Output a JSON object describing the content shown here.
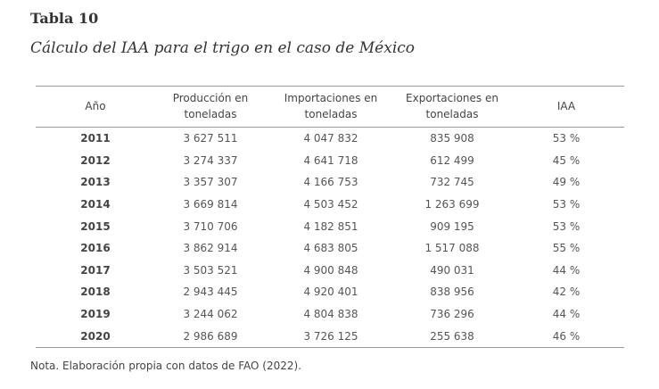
{
  "title": "Tabla 10",
  "subtitle": "Cálculo del IAA para el trigo en el caso de México",
  "table": {
    "headers": [
      "Año",
      "Producción en toneladas",
      "Importaciones en toneladas",
      "Exportaciones en toneladas",
      "IAA"
    ],
    "rows": [
      [
        "2011",
        "3 627 511",
        "4 047 832",
        "835 908",
        "53 %"
      ],
      [
        "2012",
        "3 274 337",
        "4 641 718",
        "612 499",
        "45 %"
      ],
      [
        "2013",
        "3 357 307",
        "4 166 753",
        "732 745",
        "49 %"
      ],
      [
        "2014",
        "3 669 814",
        "4 503 452",
        "1 263 699",
        "53 %"
      ],
      [
        "2015",
        "3 710 706",
        "4 182 851",
        "909 195",
        "53 %"
      ],
      [
        "2016",
        "3 862 914",
        "4 683 805",
        "1 517 088",
        "55 %"
      ],
      [
        "2017",
        "3 503 521",
        "4 900 848",
        "490 031",
        "44 %"
      ],
      [
        "2018",
        "2 943 445",
        "4 920 401",
        "838 956",
        "42 %"
      ],
      [
        "2019",
        "3 244 062",
        "4 804 838",
        "736 296",
        "44 %"
      ],
      [
        "2020",
        "2 986 689",
        "3 726 125",
        "255 638",
        "46 %"
      ]
    ]
  },
  "note": "Nota. Elaboración propia con datos de FAO (2022)."
}
